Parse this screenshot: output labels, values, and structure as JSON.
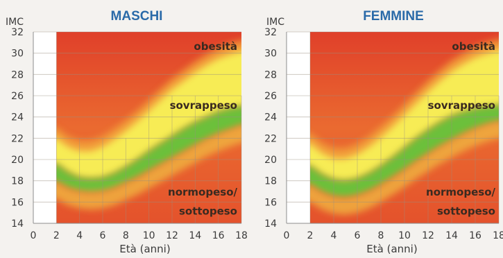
{
  "chart_data": [
    {
      "type": "area",
      "title": "MASCHI",
      "ylabel": "IMC",
      "xlabel": "Età (anni)",
      "xlim": [
        0,
        18
      ],
      "ylim": [
        14,
        32
      ],
      "x_ticks": [
        "0",
        "2",
        "4",
        "6",
        "8",
        "10",
        "12",
        "14",
        "16",
        "18"
      ],
      "y_ticks": [
        "14",
        "16",
        "18",
        "20",
        "22",
        "24",
        "26",
        "28",
        "30",
        "32"
      ],
      "data_start_x": 2,
      "zones": [
        {
          "label": "obesità",
          "color": "#e8502a"
        },
        {
          "label": "sovrappeso",
          "color": "#f7ec55"
        },
        {
          "label": "normopeso/",
          "label2": "sottopeso",
          "color": "#6cc03a"
        }
      ],
      "x": [
        2,
        3,
        4,
        5,
        6,
        7,
        8,
        9,
        10,
        11,
        12,
        13,
        14,
        15,
        16,
        17,
        18
      ],
      "series": [
        {
          "role": "obesity",
          "values": [
            22.0,
            21.2,
            20.8,
            20.8,
            21.2,
            21.9,
            22.7,
            23.6,
            24.6,
            25.6,
            26.6,
            27.4,
            28.2,
            28.9,
            29.5,
            29.9,
            30.2
          ]
        },
        {
          "role": "overweight",
          "values": [
            19.6,
            18.8,
            18.3,
            18.2,
            18.3,
            18.7,
            19.3,
            20.0,
            20.8,
            21.5,
            22.2,
            22.9,
            23.5,
            24.0,
            24.5,
            24.8,
            25.0
          ]
        },
        {
          "role": "normal_upper",
          "values": [
            17.9,
            17.3,
            17.0,
            16.9,
            17.0,
            17.3,
            17.8,
            18.3,
            18.9,
            19.5,
            20.1,
            20.7,
            21.3,
            21.9,
            22.4,
            22.8,
            23.2
          ]
        }
      ]
    },
    {
      "type": "area",
      "title": "FEMMINE",
      "ylabel": "IMC",
      "xlabel": "Età (anni)",
      "xlim": [
        0,
        18
      ],
      "ylim": [
        14,
        32
      ],
      "x_ticks": [
        "0",
        "2",
        "4",
        "6",
        "8",
        "10",
        "12",
        "14",
        "16",
        "18"
      ],
      "y_ticks": [
        "14",
        "16",
        "18",
        "20",
        "22",
        "24",
        "26",
        "28",
        "30",
        "32"
      ],
      "data_start_x": 2,
      "zones": [
        {
          "label": "obesità",
          "color": "#e8502a"
        },
        {
          "label": "sovrappeso",
          "color": "#f7ec55"
        },
        {
          "label": "normopeso/",
          "label2": "sottopeso",
          "color": "#6cc03a"
        }
      ],
      "x": [
        2,
        3,
        4,
        5,
        6,
        7,
        8,
        9,
        10,
        11,
        12,
        13,
        14,
        15,
        16,
        17,
        18
      ],
      "series": [
        {
          "role": "obesity",
          "values": [
            21.5,
            20.6,
            20.1,
            20.1,
            20.5,
            21.2,
            22.1,
            23.1,
            24.2,
            25.3,
            26.4,
            27.4,
            28.3,
            29.0,
            29.6,
            30.0,
            30.3
          ]
        },
        {
          "role": "overweight",
          "values": [
            19.4,
            18.6,
            18.1,
            18.0,
            18.2,
            18.7,
            19.4,
            20.2,
            21.1,
            22.0,
            22.8,
            23.5,
            24.1,
            24.5,
            24.8,
            25.0,
            25.1
          ]
        },
        {
          "role": "normal_upper",
          "values": [
            17.6,
            16.9,
            16.5,
            16.4,
            16.6,
            17.0,
            17.6,
            18.3,
            19.0,
            19.8,
            20.5,
            21.2,
            21.8,
            22.4,
            22.9,
            23.3,
            23.6
          ]
        }
      ]
    }
  ]
}
